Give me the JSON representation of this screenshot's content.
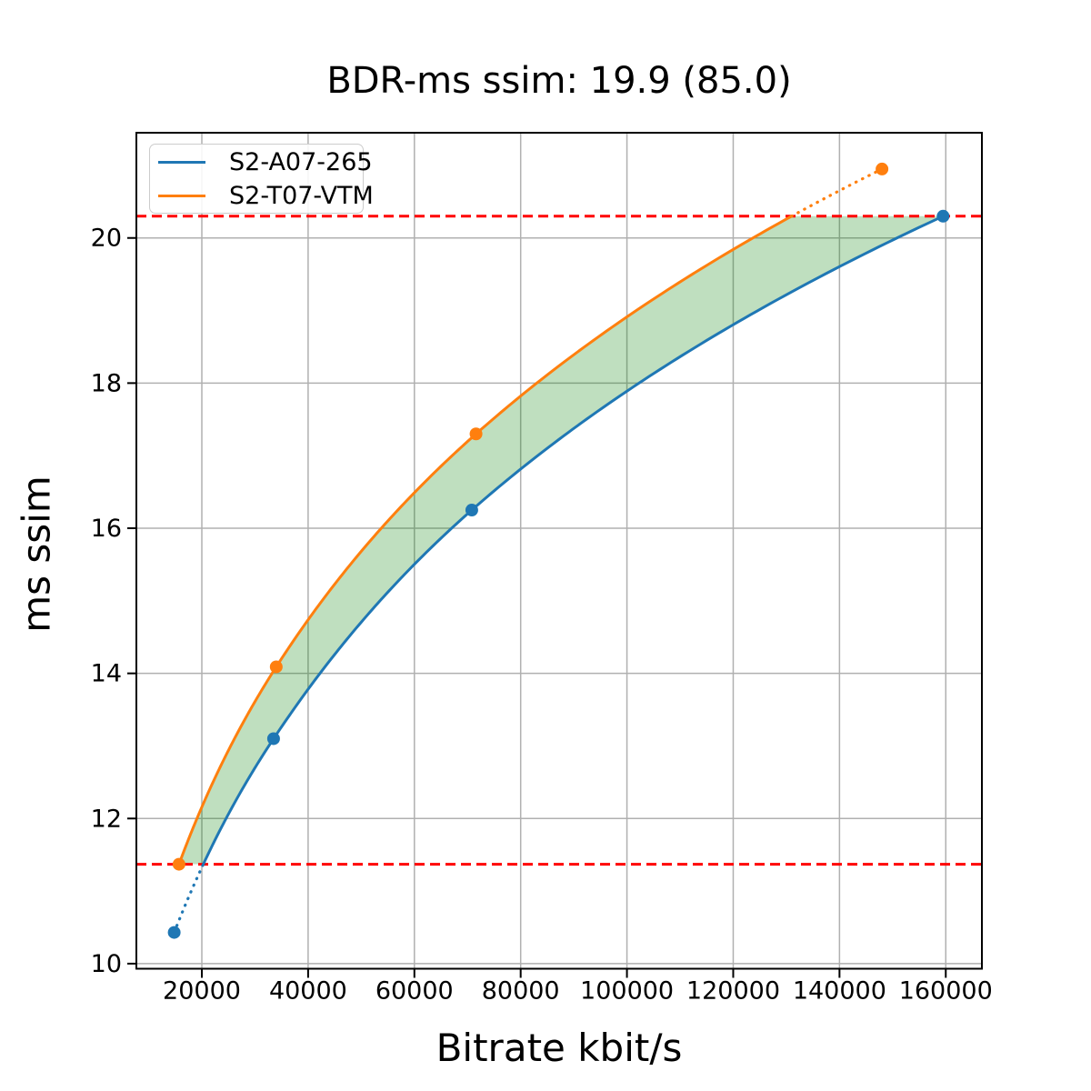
{
  "chart_data": {
    "type": "line",
    "title": "BDR-ms ssim: 19.9 (85.0)",
    "xlabel": "Bitrate kbit/s",
    "ylabel": "ms ssim",
    "xlim": [
      7680,
      166800
    ],
    "ylim": [
      9.93,
      21.45
    ],
    "grid": true,
    "xticks": {
      "values": [
        20000,
        40000,
        60000,
        80000,
        100000,
        120000,
        140000,
        160000
      ],
      "labels": [
        "20000",
        "40000",
        "60000",
        "80000",
        "100000",
        "120000",
        "140000",
        "160000"
      ]
    },
    "yticks": {
      "values": [
        10,
        12,
        14,
        16,
        18,
        20
      ],
      "labels": [
        "10",
        "12",
        "14",
        "16",
        "18",
        "20"
      ]
    },
    "series": [
      {
        "name": "S2-A07-265",
        "color": "#1f77b4",
        "points": [
          [
            14800,
            10.43
          ],
          [
            33500,
            13.1
          ],
          [
            70800,
            16.25
          ],
          [
            159500,
            20.3
          ]
        ]
      },
      {
        "name": "S2-T07-VTM",
        "color": "#ff7f0e",
        "points": [
          [
            15700,
            11.37
          ],
          [
            34000,
            14.09
          ],
          [
            71600,
            17.3
          ],
          [
            148000,
            20.95
          ]
        ]
      }
    ],
    "reference_lines": {
      "style": "dashed",
      "color": "#ff0000",
      "lower": 11.37,
      "upper": 20.3
    },
    "fill_between": {
      "color": "#008000",
      "opacity": 0.25
    },
    "legend": {
      "position": "upper-left",
      "entries": [
        "S2-A07-265",
        "S2-T07-VTM"
      ]
    }
  },
  "colors": {
    "grid": "#b0b0b0",
    "spine": "#000000",
    "background": "#ffffff"
  }
}
